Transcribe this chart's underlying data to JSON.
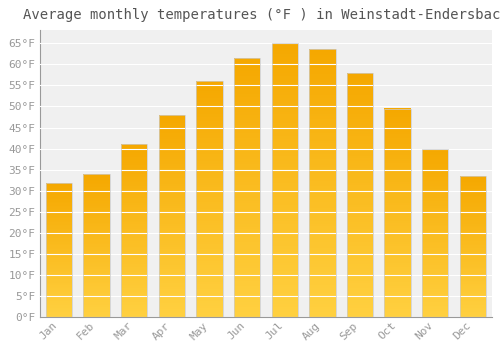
{
  "title": "Average monthly temperatures (°F ) in Weinstadt-Endersbach",
  "months": [
    "Jan",
    "Feb",
    "Mar",
    "Apr",
    "May",
    "Jun",
    "Jul",
    "Aug",
    "Sep",
    "Oct",
    "Nov",
    "Dec"
  ],
  "values": [
    31.8,
    34.0,
    41.0,
    48.0,
    56.0,
    61.5,
    65.0,
    63.5,
    58.0,
    49.5,
    40.0,
    33.5
  ],
  "bar_color_orange": "#F5A800",
  "bar_color_yellow": "#FFD040",
  "yticks": [
    0,
    5,
    10,
    15,
    20,
    25,
    30,
    35,
    40,
    45,
    50,
    55,
    60,
    65
  ],
  "ytick_labels": [
    "0°F",
    "5°F",
    "10°F",
    "15°F",
    "20°F",
    "25°F",
    "30°F",
    "35°F",
    "40°F",
    "45°F",
    "50°F",
    "55°F",
    "60°F",
    "65°F"
  ],
  "ylim": [
    0,
    68
  ],
  "background_color": "#FFFFFF",
  "plot_bg_color": "#F0F0F0",
  "grid_color": "#FFFFFF",
  "title_fontsize": 10,
  "tick_fontsize": 8,
  "title_color": "#555555",
  "tick_color": "#999999",
  "font_family": "monospace",
  "bar_width": 0.7,
  "border_color": "#CCCCCC"
}
